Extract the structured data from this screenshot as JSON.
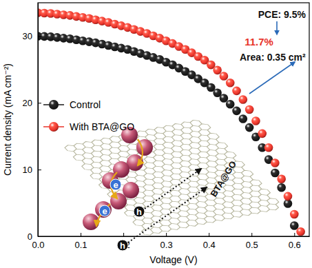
{
  "chart_data": {
    "type": "scatter",
    "x_label": "Voltage (V)",
    "y_label": "Current density (mA cm⁻²)",
    "xlim": [
      0,
      0.635
    ],
    "ylim": [
      0,
      35
    ],
    "xticks": [
      {
        "value": 0,
        "label": "0.0"
      },
      {
        "value": 0.1,
        "label": "0.1"
      },
      {
        "value": 0.2,
        "label": "0.2"
      },
      {
        "value": 0.3,
        "label": "0.3"
      },
      {
        "value": 0.4,
        "label": "0.4"
      },
      {
        "value": 0.5,
        "label": "0.5"
      },
      {
        "value": 0.6,
        "label": "0.6"
      }
    ],
    "yticks": [
      0,
      10,
      20,
      30
    ],
    "grid": false,
    "legend": "upper left",
    "series": [
      {
        "name": "Control",
        "color": "#1a1a1a",
        "marker": "circle",
        "x": [
          0,
          0.015,
          0.03,
          0.045,
          0.06,
          0.075,
          0.09,
          0.105,
          0.12,
          0.135,
          0.15,
          0.165,
          0.18,
          0.195,
          0.21,
          0.225,
          0.24,
          0.255,
          0.27,
          0.285,
          0.3,
          0.315,
          0.33,
          0.345,
          0.36,
          0.375,
          0.39,
          0.405,
          0.42,
          0.435,
          0.45,
          0.465,
          0.48,
          0.495,
          0.51,
          0.525,
          0.54,
          0.555,
          0.57,
          0.585,
          0.6
        ],
        "values": [
          30.0,
          29.95,
          29.9,
          29.8,
          29.7,
          29.6,
          29.45,
          29.3,
          29.15,
          29.0,
          28.8,
          28.6,
          28.4,
          28.2,
          28.0,
          27.7,
          27.4,
          27.1,
          26.8,
          26.5,
          26.1,
          25.7,
          25.2,
          24.7,
          24.2,
          23.6,
          23.0,
          22.3,
          21.5,
          20.7,
          19.8,
          18.8,
          17.6,
          16.3,
          14.9,
          13.3,
          11.5,
          9.5,
          7.3,
          4.9,
          1.6
        ]
      },
      {
        "name": "With BTA@GO",
        "color": "#e8332a",
        "marker": "circle",
        "x": [
          0,
          0.015,
          0.03,
          0.045,
          0.06,
          0.075,
          0.09,
          0.105,
          0.12,
          0.135,
          0.15,
          0.165,
          0.18,
          0.195,
          0.21,
          0.225,
          0.24,
          0.255,
          0.27,
          0.285,
          0.3,
          0.315,
          0.33,
          0.345,
          0.36,
          0.375,
          0.39,
          0.405,
          0.42,
          0.435,
          0.45,
          0.465,
          0.48,
          0.495,
          0.51,
          0.525,
          0.54,
          0.555,
          0.57,
          0.585,
          0.6,
          0.615
        ],
        "values": [
          33.5,
          33.45,
          33.4,
          33.3,
          33.2,
          33.1,
          32.95,
          32.8,
          32.65,
          32.45,
          32.25,
          32.05,
          31.8,
          31.55,
          31.3,
          31.0,
          30.7,
          30.4,
          30.05,
          29.7,
          29.3,
          28.9,
          28.45,
          28.0,
          27.5,
          26.95,
          26.4,
          25.7,
          24.9,
          24.0,
          23.0,
          21.8,
          20.5,
          19.0,
          17.3,
          15.4,
          13.3,
          11.0,
          8.6,
          6.0,
          3.3,
          0.7
        ]
      }
    ],
    "annotations": [
      {
        "text": "PCE: 9.5%"
      },
      {
        "text": "11.7%"
      },
      {
        "text": "Area: 0.35 cm²"
      },
      {
        "text": "BTA@GO"
      },
      {
        "text": "e"
      },
      {
        "text": "e"
      },
      {
        "text": "h"
      },
      {
        "text": "h"
      }
    ]
  }
}
